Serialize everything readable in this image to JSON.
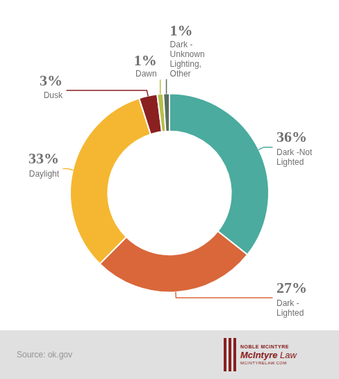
{
  "chart_data": {
    "type": "doughnut",
    "categories": [
      "Dark -Not\nLighted",
      "Dark -\nLighted",
      "Daylight",
      "Dusk",
      "Dawn",
      "Dark -\nUnknown\nLighting,\nOther"
    ],
    "values": [
      36,
      27,
      33,
      3,
      1,
      1
    ],
    "value_labels": [
      "36%",
      "27%",
      "33%",
      "3%",
      "1%",
      "1%"
    ],
    "colors": [
      "#4aab9e",
      "#d9673a",
      "#f5b731",
      "#8b2020",
      "#b5bf4b",
      "#5a6e5e"
    ],
    "data_labels": true,
    "annotations": [
      "Source: ok.gov",
      "NOBLE MCINTYRE",
      "McIntyre",
      "Law",
      "MCINTYRELAW.COM"
    ]
  }
}
